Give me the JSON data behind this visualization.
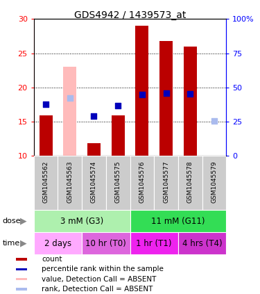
{
  "title": "GDS4942 / 1439573_at",
  "samples": [
    "GSM1045562",
    "GSM1045563",
    "GSM1045574",
    "GSM1045575",
    "GSM1045576",
    "GSM1045577",
    "GSM1045578",
    "GSM1045579"
  ],
  "count_values": [
    15.9,
    null,
    11.9,
    15.9,
    29.0,
    26.8,
    26.0,
    null
  ],
  "count_absent_values": [
    null,
    23.0,
    null,
    null,
    null,
    null,
    null,
    null
  ],
  "percentile_values": [
    17.5,
    null,
    15.8,
    17.3,
    19.0,
    19.2,
    19.1,
    null
  ],
  "percentile_absent_values": [
    null,
    18.5,
    null,
    null,
    null,
    null,
    null,
    15.1
  ],
  "ylim_left": [
    10,
    30
  ],
  "ylim_right": [
    0,
    100
  ],
  "left_ticks": [
    10,
    15,
    20,
    25,
    30
  ],
  "right_ticks": [
    0,
    25,
    50,
    75,
    100
  ],
  "right_tick_labels": [
    "0",
    "25",
    "50",
    "75",
    "100%"
  ],
  "dose_groups": [
    {
      "label": "3 mM (G3)",
      "start": 0,
      "end": 4,
      "color": "#aef0ae"
    },
    {
      "label": "11 mM (G11)",
      "start": 4,
      "end": 8,
      "color": "#33dd55"
    }
  ],
  "time_groups": [
    {
      "label": "2 days",
      "start": 0,
      "end": 2,
      "color": "#ffaaff"
    },
    {
      "label": "10 hr (T0)",
      "start": 2,
      "end": 4,
      "color": "#dd66dd"
    },
    {
      "label": "1 hr (T1)",
      "start": 4,
      "end": 6,
      "color": "#ee22ee"
    },
    {
      "label": "4 hrs (T4)",
      "start": 6,
      "end": 8,
      "color": "#cc33cc"
    }
  ],
  "bar_color_red": "#bb0000",
  "bar_color_pink": "#ffbbbb",
  "dot_color_blue": "#0000bb",
  "dot_color_light_blue": "#aabbee",
  "bar_width": 0.55,
  "dot_size": 40,
  "legend_items": [
    {
      "label": "count",
      "color": "#bb0000"
    },
    {
      "label": "percentile rank within the sample",
      "color": "#0000bb"
    },
    {
      "label": "value, Detection Call = ABSENT",
      "color": "#ffbbbb"
    },
    {
      "label": "rank, Detection Call = ABSENT",
      "color": "#aabbee"
    }
  ],
  "sample_box_color": "#cccccc",
  "fig_width": 3.75,
  "fig_height": 4.23,
  "dpi": 100
}
